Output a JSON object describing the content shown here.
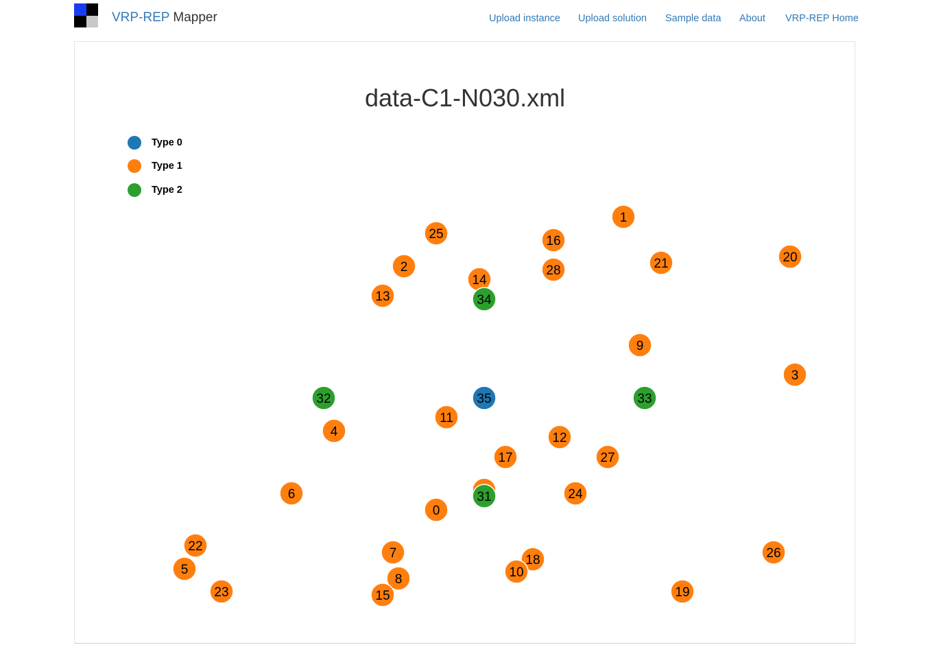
{
  "navbar": {
    "brand_primary": "VRP-REP",
    "brand_secondary": "Mapper",
    "logo_colors": [
      "#1a3cf0",
      "#000000",
      "#000000",
      "#c8c8c8"
    ],
    "links": [
      "Upload instance",
      "Upload solution",
      "Sample data",
      "About",
      "VRP-REP Home"
    ],
    "link_color": "#337ab7"
  },
  "map": {
    "title": "data-C1-N030.xml",
    "legend": [
      {
        "label": "Type 0",
        "color": "#1f77b4"
      },
      {
        "label": "Type 1",
        "color": "#ff7f0e"
      },
      {
        "label": "Type 2",
        "color": "#2ca02c"
      }
    ],
    "nodes": [
      {
        "id": "1",
        "type": 1
      },
      {
        "id": "25",
        "type": 1
      },
      {
        "id": "16",
        "type": 1
      },
      {
        "id": "20",
        "type": 1
      },
      {
        "id": "21",
        "type": 1
      },
      {
        "id": "2",
        "type": 1
      },
      {
        "id": "28",
        "type": 1
      },
      {
        "id": "14",
        "type": 1
      },
      {
        "id": "13",
        "type": 1
      },
      {
        "id": "34",
        "type": 2
      },
      {
        "id": "9",
        "type": 1
      },
      {
        "id": "3",
        "type": 1
      },
      {
        "id": "32",
        "type": 2
      },
      {
        "id": "35",
        "type": 0
      },
      {
        "id": "33",
        "type": 2
      },
      {
        "id": "11",
        "type": 1
      },
      {
        "id": "4",
        "type": 1
      },
      {
        "id": "12",
        "type": 1
      },
      {
        "id": "17",
        "type": 1
      },
      {
        "id": "27",
        "type": 1
      },
      {
        "id": "6",
        "type": 1
      },
      {
        "id": "",
        "type": 1
      },
      {
        "id": "31",
        "type": 2
      },
      {
        "id": "24",
        "type": 1
      },
      {
        "id": "0",
        "type": 1
      },
      {
        "id": "22",
        "type": 1
      },
      {
        "id": "7",
        "type": 1
      },
      {
        "id": "26",
        "type": 1
      },
      {
        "id": "5",
        "type": 1
      },
      {
        "id": "18",
        "type": 1
      },
      {
        "id": "8",
        "type": 1
      },
      {
        "id": "10",
        "type": 1
      },
      {
        "id": "23",
        "type": 1
      },
      {
        "id": "19",
        "type": 1
      },
      {
        "id": "15",
        "type": 1
      }
    ]
  }
}
